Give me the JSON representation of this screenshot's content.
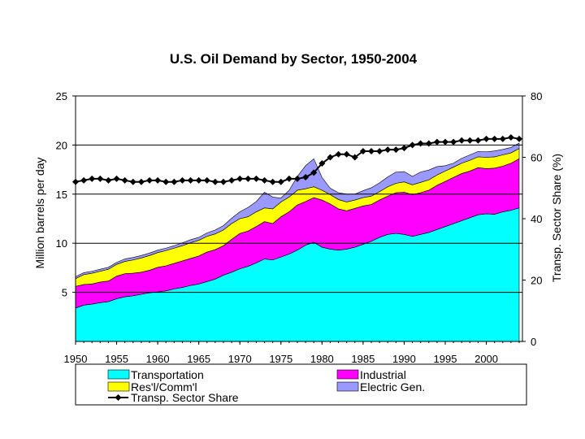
{
  "chart_data": {
    "type": "area",
    "title": "U.S. Oil Demand by Sector, 1950-2004",
    "ylabel": "Million barrels per day",
    "y2label": "Transp. Sector Share (%)",
    "ylim": [
      0,
      25
    ],
    "y2lim": [
      0,
      80
    ],
    "xlim": [
      1950,
      2004
    ],
    "x_ticks": [
      "1950",
      "1955",
      "1960",
      "1965",
      "1970",
      "1975",
      "1980",
      "1985",
      "1990",
      "1995",
      "2000"
    ],
    "y_ticks": [
      "5",
      "10",
      "15",
      "20",
      "25"
    ],
    "y2_ticks": [
      "0",
      "20",
      "40",
      "60",
      "80"
    ],
    "grid": "horizontal",
    "legend_position": "bottom",
    "x": [
      1950,
      1951,
      1952,
      1953,
      1954,
      1955,
      1956,
      1957,
      1958,
      1959,
      1960,
      1961,
      1962,
      1963,
      1964,
      1965,
      1966,
      1967,
      1968,
      1969,
      1970,
      1971,
      1972,
      1973,
      1974,
      1975,
      1976,
      1977,
      1978,
      1979,
      1980,
      1981,
      1982,
      1983,
      1984,
      1985,
      1986,
      1987,
      1988,
      1989,
      1990,
      1991,
      1992,
      1993,
      1994,
      1995,
      1996,
      1997,
      1998,
      1999,
      2000,
      2001,
      2002,
      2003,
      2004
    ],
    "series": [
      {
        "name": "Transportation",
        "color": "#00ffff",
        "values": [
          3.4,
          3.7,
          3.8,
          3.95,
          4.05,
          4.35,
          4.55,
          4.65,
          4.8,
          4.95,
          5.05,
          5.15,
          5.35,
          5.5,
          5.7,
          5.85,
          6.1,
          6.35,
          6.75,
          7.05,
          7.4,
          7.65,
          8.0,
          8.4,
          8.3,
          8.6,
          8.9,
          9.3,
          9.8,
          10.1,
          9.6,
          9.4,
          9.3,
          9.4,
          9.6,
          9.9,
          10.2,
          10.6,
          10.9,
          11.0,
          10.9,
          10.7,
          10.9,
          11.1,
          11.4,
          11.7,
          12.0,
          12.3,
          12.6,
          12.9,
          13.0,
          12.95,
          13.2,
          13.35,
          13.6
        ]
      },
      {
        "name": "Industrial",
        "color": "#ff00ff",
        "values": [
          2.2,
          2.1,
          2.05,
          2.1,
          2.1,
          2.3,
          2.35,
          2.3,
          2.25,
          2.3,
          2.5,
          2.55,
          2.6,
          2.7,
          2.75,
          2.85,
          3.0,
          3.0,
          3.0,
          3.35,
          3.6,
          3.6,
          3.7,
          3.8,
          3.7,
          4.1,
          4.3,
          4.6,
          4.45,
          4.55,
          4.8,
          4.6,
          4.2,
          3.9,
          3.95,
          3.9,
          3.75,
          3.8,
          3.9,
          4.15,
          4.3,
          4.25,
          4.25,
          4.3,
          4.5,
          4.6,
          4.7,
          4.8,
          4.75,
          4.8,
          4.6,
          4.7,
          4.65,
          4.8,
          5.0
        ]
      },
      {
        "name": "Res'l/Comm'l",
        "color": "#ffff00",
        "values": [
          0.8,
          1.0,
          1.1,
          1.1,
          1.2,
          1.2,
          1.25,
          1.35,
          1.45,
          1.5,
          1.5,
          1.55,
          1.55,
          1.55,
          1.6,
          1.6,
          1.6,
          1.6,
          1.6,
          1.6,
          1.5,
          1.45,
          1.5,
          1.4,
          1.5,
          1.5,
          1.5,
          1.5,
          1.3,
          1.1,
          1.0,
          0.95,
          0.95,
          0.9,
          0.85,
          0.85,
          0.85,
          0.85,
          0.95,
          0.95,
          1.05,
          1.0,
          1.05,
          1.05,
          1.05,
          1.05,
          1.05,
          1.05,
          1.1,
          1.1,
          1.15,
          1.15,
          1.15,
          1.05,
          1.05
        ]
      },
      {
        "name": "Electric Gen.",
        "color": "#9999ff",
        "values": [
          0.2,
          0.2,
          0.2,
          0.2,
          0.2,
          0.2,
          0.25,
          0.25,
          0.25,
          0.25,
          0.25,
          0.25,
          0.25,
          0.3,
          0.3,
          0.3,
          0.35,
          0.4,
          0.45,
          0.55,
          0.7,
          0.95,
          1.05,
          1.6,
          1.2,
          0.4,
          0.7,
          1.4,
          2.35,
          2.85,
          1.3,
          0.65,
          0.7,
          0.8,
          0.6,
          0.7,
          0.85,
          0.9,
          1.0,
          1.15,
          1.05,
          0.85,
          1.05,
          1.0,
          0.85,
          0.55,
          0.4,
          0.5,
          0.55,
          0.55,
          0.55,
          0.6,
          0.55,
          0.55,
          0.55
        ]
      },
      {
        "name": "Transp. Sector Share",
        "color": "#000000",
        "axis": "right",
        "values": [
          52,
          52.5,
          53,
          53,
          52.5,
          53,
          52.5,
          52,
          52,
          52.5,
          52.5,
          52,
          52,
          52.5,
          52.5,
          52.5,
          52.5,
          52,
          52,
          52.5,
          53,
          53,
          53,
          52.5,
          52,
          52,
          53,
          53,
          53.5,
          55,
          58,
          60,
          61,
          61,
          60,
          62,
          62,
          62,
          62.5,
          62.5,
          63,
          64,
          64.5,
          64.5,
          65,
          65,
          65,
          65.5,
          65.5,
          65.5,
          66,
          66,
          66,
          66.5,
          66
        ]
      }
    ]
  }
}
